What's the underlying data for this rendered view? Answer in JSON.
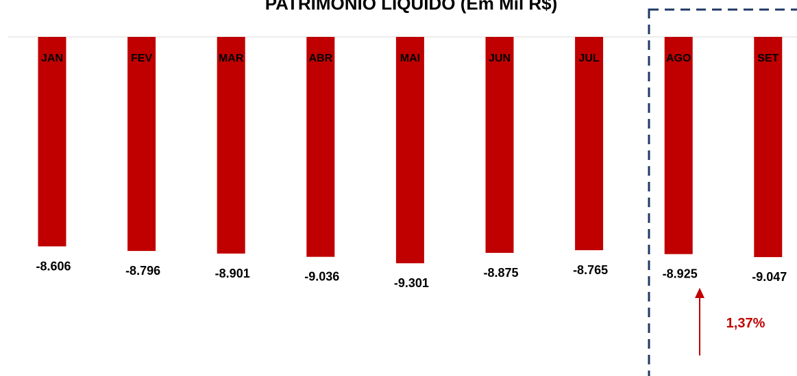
{
  "chart_data": {
    "type": "bar",
    "title": "PATRIMÔNIO LÍQUIDO (Em Mil R$)",
    "categories": [
      "JAN",
      "FEV",
      "MAR",
      "ABR",
      "MAI",
      "JUN",
      "JUL",
      "AGO",
      "SET"
    ],
    "values": [
      -8606,
      -8796,
      -8901,
      -9036,
      -9301,
      -8875,
      -8765,
      -8925,
      -9047
    ],
    "value_labels": [
      "-8.606",
      "-8.796",
      "-8.901",
      "-9.036",
      "-9.301",
      "-8.875",
      "-8.765",
      "-8.925",
      "-9.047"
    ],
    "ylim": [
      -9600,
      0
    ],
    "bar_color": "#c00000",
    "highlight": {
      "categories": [
        "AGO",
        "SET"
      ],
      "border_color": "#1f3864",
      "change_label": "1,37%",
      "change_direction": "up",
      "change_color": "#c00000"
    }
  }
}
